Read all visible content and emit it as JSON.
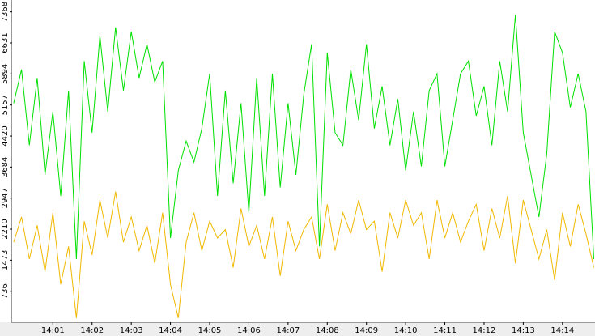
{
  "chart_data": {
    "type": "line",
    "x": [
      0,
      0.2,
      0.4,
      0.6,
      0.8,
      1,
      1.2,
      1.4,
      1.6,
      1.8,
      2,
      2.2,
      2.4,
      2.6,
      2.8,
      3,
      3.2,
      3.4,
      3.6,
      3.8,
      4,
      4.2,
      4.4,
      4.6,
      4.8,
      5,
      5.2,
      5.4,
      5.6,
      5.8,
      6,
      6.2,
      6.4,
      6.6,
      6.8,
      7,
      7.2,
      7.4,
      7.6,
      7.8,
      8,
      8.2,
      8.4,
      8.6,
      8.8,
      9,
      9.2,
      9.4,
      9.6,
      9.8,
      10,
      10.2,
      10.4,
      10.6,
      10.8,
      11,
      11.2,
      11.4,
      11.6,
      11.8,
      12,
      12.2,
      12.4,
      12.6,
      12.8,
      13,
      13.2,
      13.4,
      13.6,
      13.8,
      14,
      14.2,
      14.4,
      14.6,
      14.8
    ],
    "series": [
      {
        "color": "#00e000",
        "values": [
          5200,
          6000,
          4200,
          5800,
          3500,
          5000,
          3000,
          5500,
          1500,
          6200,
          4500,
          6800,
          5000,
          7000,
          5500,
          6900,
          5800,
          6600,
          5700,
          6200,
          2000,
          3600,
          4300,
          3800,
          4600,
          5900,
          3000,
          5500,
          3300,
          5200,
          2600,
          5800,
          3000,
          5900,
          3200,
          5200,
          3500,
          5400,
          6600,
          1800,
          6400,
          4500,
          4200,
          6000,
          4800,
          6600,
          4600,
          5600,
          4200,
          5300,
          3600,
          5000,
          3700,
          5500,
          5900,
          3700,
          4800,
          5900,
          6200,
          4900,
          5600,
          4200,
          6200,
          5000,
          7300,
          4500,
          3500,
          2500,
          4000,
          6900,
          6400,
          5100,
          5900,
          5000,
          1500
        ]
      },
      {
        "color": "#f0b800",
        "values": [
          1900,
          2500,
          1500,
          2300,
          1200,
          2600,
          900,
          1800,
          100,
          2400,
          1600,
          2900,
          2000,
          3100,
          1900,
          2500,
          1700,
          2300,
          1400,
          2600,
          900,
          100,
          1900,
          2600,
          1700,
          2400,
          2000,
          2200,
          1300,
          2700,
          1800,
          2300,
          1500,
          2500,
          1100,
          2400,
          1700,
          2200,
          2500,
          1500,
          2800,
          1700,
          2600,
          2100,
          2900,
          2200,
          2400,
          1200,
          2600,
          2000,
          2900,
          2300,
          2600,
          1500,
          2900,
          2000,
          2600,
          1900,
          2400,
          2800,
          1700,
          2700,
          2000,
          3000,
          1400,
          2900,
          2200,
          1500,
          2200,
          1000,
          2600,
          1800,
          2800,
          2100,
          1300
        ]
      }
    ],
    "xlim": [
      -0.06,
      14.83
    ],
    "xticks": [
      {
        "value": 1,
        "label": "14:01"
      },
      {
        "value": 2,
        "label": "14:02"
      },
      {
        "value": 3,
        "label": "14:03"
      },
      {
        "value": 4,
        "label": "14:04"
      },
      {
        "value": 5,
        "label": "14:05"
      },
      {
        "value": 6,
        "label": "14:06"
      },
      {
        "value": 7,
        "label": "14:07"
      },
      {
        "value": 8,
        "label": "14:08"
      },
      {
        "value": 9,
        "label": "14:09"
      },
      {
        "value": 10,
        "label": "14:10"
      },
      {
        "value": 11,
        "label": "14:11"
      },
      {
        "value": 12,
        "label": "14:12"
      },
      {
        "value": 13,
        "label": "14:13"
      },
      {
        "value": 14,
        "label": "14:14"
      }
    ],
    "ylim": [
      0,
      7650
    ],
    "yticks": [
      736,
      1473,
      2210,
      2947,
      3684,
      4420,
      5157,
      5894,
      6631,
      7368
    ]
  }
}
